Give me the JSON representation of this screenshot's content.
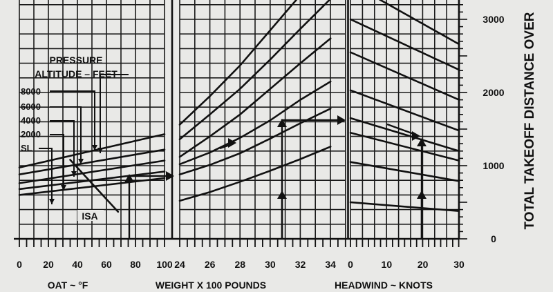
{
  "chart_data": [
    {
      "type": "line",
      "name": "oat-panel",
      "xlabel": "OAT ~ °F",
      "xlim": [
        0,
        110
      ],
      "xticks": [
        0,
        20,
        40,
        60,
        80,
        100
      ],
      "legend_title": [
        "PRESSURE",
        "ALTITUDE – FEET"
      ],
      "series": [
        {
          "name": "8000",
          "x": [
            0,
            100
          ],
          "y": [
            975,
            1430
          ]
        },
        {
          "name": "6000",
          "x": [
            0,
            100
          ],
          "y": [
            880,
            1220
          ]
        },
        {
          "name": "4000",
          "x": [
            0,
            100
          ],
          "y": [
            760,
            1070
          ]
        },
        {
          "name": "2000",
          "x": [
            0,
            100
          ],
          "y": [
            680,
            920
          ]
        },
        {
          "name": "SL",
          "x": [
            0,
            100
          ],
          "y": [
            600,
            830
          ]
        }
      ],
      "isa_label": "ISA",
      "isa_line": {
        "x": [
          35,
          68
        ],
        "y": [
          1080,
          370
        ]
      }
    },
    {
      "type": "line",
      "name": "weight-panel",
      "xlabel": "WEIGHT X 100 POUNDS",
      "xlim": [
        24,
        35
      ],
      "xticks": [
        24,
        26,
        28,
        30,
        32,
        34
      ],
      "series": [
        {
          "x": [
            24,
            26,
            28,
            30,
            32,
            34
          ],
          "y": [
            1560,
            1950,
            2370,
            2850,
            3330,
            3800
          ]
        },
        {
          "x": [
            24,
            26,
            28,
            30,
            32,
            34
          ],
          "y": [
            1360,
            1700,
            2050,
            2450,
            2870,
            3280
          ]
        },
        {
          "x": [
            24,
            26,
            28,
            30,
            32,
            34
          ],
          "y": [
            1120,
            1400,
            1700,
            2050,
            2400,
            2740
          ]
        },
        {
          "x": [
            24,
            26,
            28,
            30,
            32,
            34
          ],
          "y": [
            1020,
            1180,
            1380,
            1620,
            1900,
            2150
          ]
        },
        {
          "x": [
            24,
            26,
            28,
            30,
            32,
            34
          ],
          "y": [
            880,
            1010,
            1170,
            1370,
            1580,
            1780
          ]
        },
        {
          "x": [
            24,
            26,
            28,
            30,
            32,
            34
          ],
          "y": [
            520,
            640,
            780,
            930,
            1090,
            1260
          ]
        }
      ]
    },
    {
      "type": "line",
      "name": "headwind-panel",
      "xlabel": "HEADWIND ~ KNOTS",
      "xlim": [
        0,
        30
      ],
      "xticks": [
        0,
        10,
        20,
        30
      ],
      "ylabel": "TOTAL TAKEOFF DISTANCE OVER",
      "ylim": [
        0,
        3300
      ],
      "yticks": [
        0,
        1000,
        2000,
        3000
      ],
      "series": [
        {
          "x": [
            7,
            30
          ],
          "y": [
            3300,
            2660
          ]
        },
        {
          "x": [
            0,
            30
          ],
          "y": [
            3000,
            2310
          ]
        },
        {
          "x": [
            0,
            30
          ],
          "y": [
            2550,
            1900
          ]
        },
        {
          "x": [
            0,
            30
          ],
          "y": [
            2030,
            1480
          ]
        },
        {
          "x": [
            0,
            30
          ],
          "y": [
            1650,
            1200
          ]
        },
        {
          "x": [
            0,
            30
          ],
          "y": [
            1450,
            1070
          ]
        },
        {
          "x": [
            0,
            30
          ],
          "y": [
            1050,
            790
          ]
        },
        {
          "x": [
            0,
            30
          ],
          "y": [
            500,
            380
          ]
        }
      ]
    }
  ]
}
